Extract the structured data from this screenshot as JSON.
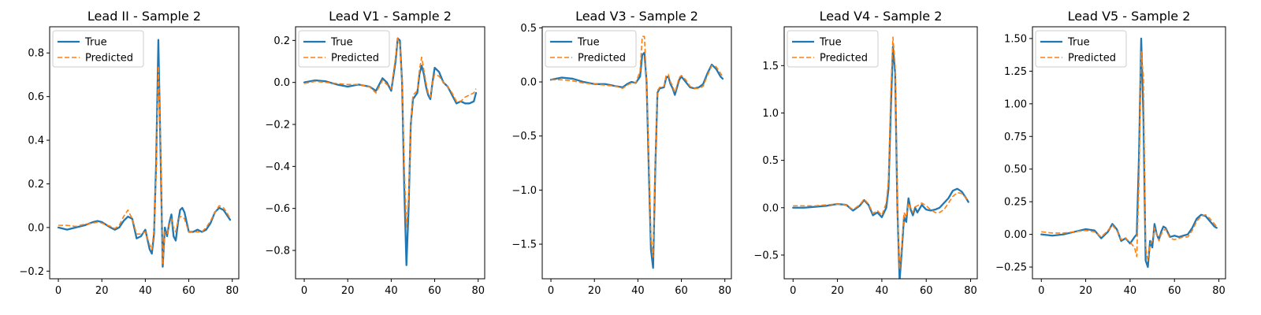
{
  "colors": {
    "true": "#1f77b4",
    "predicted": "#ff7f0e"
  },
  "chart_data": [
    {
      "type": "line",
      "title": "Lead II - Sample 2",
      "xlim": [
        -4,
        83
      ],
      "ylim": [
        -0.235,
        0.92
      ],
      "xticks": [
        0,
        20,
        40,
        60,
        80
      ],
      "yticks": [
        -0.2,
        0.0,
        0.2,
        0.4,
        0.6,
        0.8
      ],
      "ytick_labels": [
        "−0.2",
        "0.0",
        "0.2",
        "0.4",
        "0.6",
        "0.8"
      ],
      "legend": {
        "position": "upper-left",
        "entries": [
          "True",
          "Predicted"
        ]
      },
      "series": [
        {
          "name": "True",
          "style": "solid",
          "x": [
            0,
            4,
            8,
            12,
            16,
            18,
            20,
            24,
            26,
            28,
            30,
            32,
            34,
            36,
            38,
            40,
            42,
            43,
            44,
            45,
            46,
            47,
            48,
            49,
            50,
            51,
            52,
            53,
            54,
            55,
            56,
            57,
            58,
            60,
            62,
            64,
            66,
            68,
            70,
            72,
            74,
            76,
            78,
            79
          ],
          "y": [
            0.0,
            -0.01,
            0.0,
            0.01,
            0.025,
            0.03,
            0.025,
            0.0,
            -0.01,
            0.0,
            0.03,
            0.05,
            0.04,
            -0.05,
            -0.04,
            -0.01,
            -0.1,
            -0.12,
            -0.03,
            0.3,
            0.86,
            0.35,
            -0.18,
            0.0,
            -0.04,
            0.02,
            0.06,
            -0.04,
            -0.06,
            0.02,
            0.08,
            0.09,
            0.07,
            -0.02,
            -0.02,
            -0.01,
            -0.02,
            -0.01,
            0.02,
            0.07,
            0.09,
            0.08,
            0.05,
            0.035
          ]
        },
        {
          "name": "Predicted",
          "style": "dashed",
          "x": [
            0,
            4,
            8,
            12,
            16,
            18,
            20,
            24,
            26,
            28,
            30,
            32,
            34,
            36,
            38,
            40,
            42,
            43,
            44,
            45,
            46,
            47,
            48,
            49,
            50,
            51,
            52,
            53,
            54,
            55,
            56,
            57,
            58,
            60,
            62,
            64,
            66,
            68,
            70,
            72,
            74,
            76,
            78,
            79
          ],
          "y": [
            0.01,
            0.01,
            0.005,
            0.015,
            0.02,
            0.025,
            0.02,
            0.005,
            -0.005,
            0.01,
            0.05,
            0.08,
            0.04,
            -0.03,
            -0.03,
            -0.02,
            -0.08,
            -0.1,
            -0.01,
            0.25,
            0.74,
            0.4,
            -0.17,
            -0.02,
            -0.03,
            0.01,
            0.04,
            0.0,
            -0.02,
            0.03,
            0.05,
            0.05,
            0.04,
            -0.02,
            -0.02,
            -0.02,
            -0.02,
            0.0,
            0.03,
            0.07,
            0.1,
            0.09,
            0.06,
            0.04
          ]
        }
      ]
    },
    {
      "type": "line",
      "title": "Lead V1 - Sample 2",
      "xlim": [
        -4,
        83
      ],
      "ylim": [
        -0.935,
        0.265
      ],
      "xticks": [
        0,
        20,
        40,
        60,
        80
      ],
      "yticks": [
        -0.8,
        -0.6,
        -0.4,
        -0.2,
        0.0,
        0.2
      ],
      "ytick_labels": [
        "−0.8",
        "−0.6",
        "−0.4",
        "−0.2",
        "0.0",
        "0.2"
      ],
      "legend": {
        "position": "upper-left",
        "entries": [
          "True",
          "Predicted"
        ]
      },
      "series": [
        {
          "name": "True",
          "style": "solid",
          "x": [
            0,
            5,
            10,
            15,
            20,
            25,
            30,
            33,
            36,
            38,
            40,
            42,
            43,
            44,
            45,
            46,
            47,
            48,
            49,
            50,
            52,
            53,
            54,
            55,
            56,
            57,
            58,
            59,
            60,
            62,
            64,
            66,
            68,
            70,
            72,
            74,
            76,
            78,
            79
          ],
          "y": [
            0.0,
            0.01,
            0.005,
            -0.01,
            -0.02,
            -0.01,
            -0.02,
            -0.04,
            0.02,
            0.0,
            -0.04,
            0.1,
            0.21,
            0.2,
            0.0,
            -0.5,
            -0.87,
            -0.6,
            -0.2,
            -0.08,
            -0.05,
            0.04,
            0.08,
            0.04,
            -0.02,
            -0.06,
            -0.08,
            0.0,
            0.07,
            0.05,
            0.0,
            -0.02,
            -0.06,
            -0.1,
            -0.09,
            -0.1,
            -0.1,
            -0.09,
            -0.05
          ]
        },
        {
          "name": "Predicted",
          "style": "dashed",
          "x": [
            0,
            5,
            10,
            15,
            20,
            25,
            30,
            33,
            36,
            38,
            40,
            42,
            43,
            44,
            45,
            46,
            47,
            48,
            49,
            50,
            52,
            53,
            54,
            55,
            56,
            57,
            58,
            59,
            60,
            62,
            64,
            66,
            68,
            70,
            72,
            74,
            76,
            78,
            79
          ],
          "y": [
            -0.005,
            0.005,
            0.0,
            -0.005,
            -0.01,
            -0.01,
            -0.02,
            -0.05,
            0.01,
            -0.01,
            -0.03,
            0.12,
            0.21,
            0.18,
            0.0,
            -0.4,
            -0.69,
            -0.55,
            -0.2,
            -0.06,
            -0.04,
            0.06,
            0.12,
            0.06,
            0.0,
            -0.05,
            -0.07,
            0.0,
            0.04,
            0.03,
            0.0,
            -0.02,
            -0.05,
            -0.09,
            -0.09,
            -0.07,
            -0.06,
            -0.05,
            -0.03
          ]
        }
      ]
    },
    {
      "type": "line",
      "title": "Lead V3 - Sample 2",
      "xlim": [
        -4,
        83
      ],
      "ylim": [
        -1.82,
        0.51
      ],
      "xticks": [
        0,
        20,
        40,
        60,
        80
      ],
      "yticks": [
        -1.5,
        -1.0,
        -0.5,
        0.0,
        0.5
      ],
      "ytick_labels": [
        "−1.5",
        "−1.0",
        "−0.5",
        "0.0",
        "0.5"
      ],
      "legend": {
        "position": "upper-left",
        "entries": [
          "True",
          "Predicted"
        ]
      },
      "series": [
        {
          "name": "True",
          "style": "solid",
          "x": [
            0,
            5,
            10,
            15,
            20,
            25,
            30,
            33,
            35,
            37,
            39,
            41,
            42,
            43,
            44,
            45,
            46,
            47,
            48,
            49,
            50,
            52,
            53,
            54,
            55,
            56,
            57,
            58,
            59,
            60,
            62,
            64,
            66,
            68,
            70,
            72,
            74,
            76,
            78,
            79
          ],
          "y": [
            0.02,
            0.04,
            0.03,
            0.0,
            -0.02,
            -0.02,
            -0.04,
            -0.05,
            -0.02,
            0.0,
            -0.01,
            0.05,
            0.25,
            0.27,
            0.0,
            -0.8,
            -1.55,
            -1.72,
            -0.8,
            -0.1,
            -0.06,
            -0.05,
            0.04,
            0.05,
            -0.02,
            -0.06,
            -0.12,
            -0.05,
            0.02,
            0.05,
            0.0,
            -0.05,
            -0.06,
            -0.05,
            -0.02,
            0.08,
            0.16,
            0.12,
            0.05,
            0.03
          ]
        },
        {
          "name": "Predicted",
          "style": "dashed",
          "x": [
            0,
            5,
            10,
            15,
            20,
            25,
            30,
            33,
            35,
            37,
            39,
            41,
            42,
            43,
            44,
            45,
            46,
            47,
            48,
            49,
            50,
            52,
            53,
            54,
            55,
            56,
            57,
            58,
            59,
            60,
            62,
            64,
            66,
            68,
            70,
            72,
            74,
            76,
            78,
            79
          ],
          "y": [
            0.02,
            0.02,
            0.01,
            -0.01,
            -0.02,
            -0.03,
            -0.04,
            -0.06,
            -0.03,
            -0.01,
            -0.01,
            0.1,
            0.42,
            0.42,
            0.0,
            -0.7,
            -1.45,
            -1.62,
            -0.75,
            -0.08,
            -0.05,
            -0.04,
            0.06,
            0.07,
            0.0,
            -0.04,
            -0.1,
            -0.03,
            0.04,
            0.06,
            0.02,
            -0.04,
            -0.06,
            -0.06,
            -0.04,
            0.06,
            0.15,
            0.14,
            0.08,
            0.05
          ]
        }
      ]
    },
    {
      "type": "line",
      "title": "Lead V4 - Sample 2",
      "xlim": [
        -4,
        83
      ],
      "ylim": [
        -0.75,
        1.91
      ],
      "xticks": [
        0,
        20,
        40,
        60,
        80
      ],
      "yticks": [
        -0.5,
        0.0,
        0.5,
        1.0,
        1.5
      ],
      "ytick_labels": [
        "−0.5",
        "0.0",
        "0.5",
        "1.0",
        "1.5"
      ],
      "legend": {
        "position": "upper-left",
        "entries": [
          "True",
          "Predicted"
        ]
      },
      "series": [
        {
          "name": "True",
          "style": "solid",
          "x": [
            0,
            5,
            10,
            15,
            20,
            24,
            27,
            30,
            32,
            34,
            36,
            38,
            40,
            42,
            43,
            44,
            45,
            46,
            47,
            48,
            49,
            50,
            51,
            52,
            53,
            54,
            55,
            56,
            58,
            60,
            62,
            64,
            66,
            68,
            70,
            72,
            74,
            76,
            78,
            79
          ],
          "y": [
            0.0,
            0.0,
            0.01,
            0.02,
            0.04,
            0.03,
            -0.03,
            0.02,
            0.08,
            0.03,
            -0.08,
            -0.05,
            -0.1,
            0.0,
            0.2,
            1.0,
            1.7,
            1.42,
            0.0,
            -0.77,
            -0.45,
            -0.1,
            -0.15,
            0.1,
            -0.02,
            -0.08,
            0.0,
            -0.05,
            0.03,
            -0.02,
            -0.03,
            -0.02,
            0.0,
            0.05,
            0.1,
            0.18,
            0.2,
            0.17,
            0.1,
            0.06
          ]
        },
        {
          "name": "Predicted",
          "style": "dashed",
          "x": [
            0,
            5,
            10,
            15,
            20,
            24,
            27,
            30,
            32,
            34,
            36,
            38,
            40,
            42,
            43,
            44,
            45,
            46,
            47,
            48,
            49,
            50,
            51,
            52,
            53,
            54,
            55,
            56,
            58,
            60,
            62,
            64,
            66,
            68,
            70,
            72,
            74,
            76,
            78,
            79
          ],
          "y": [
            0.02,
            0.02,
            0.02,
            0.03,
            0.04,
            0.03,
            -0.02,
            0.03,
            0.09,
            0.04,
            -0.06,
            -0.03,
            -0.08,
            0.05,
            0.3,
            1.2,
            1.8,
            1.5,
            0.0,
            -0.65,
            -0.4,
            -0.05,
            -0.1,
            0.05,
            0.0,
            -0.05,
            0.01,
            0.02,
            0.05,
            0.02,
            -0.02,
            -0.05,
            -0.05,
            -0.02,
            0.05,
            0.12,
            0.16,
            0.15,
            0.1,
            0.07
          ]
        }
      ]
    },
    {
      "type": "line",
      "title": "Lead V5 - Sample 2",
      "xlim": [
        -4,
        83
      ],
      "ylim": [
        -0.34,
        1.59
      ],
      "xticks": [
        0,
        20,
        40,
        60,
        80
      ],
      "yticks": [
        -0.25,
        0.0,
        0.25,
        0.5,
        0.75,
        1.0,
        1.25,
        1.5
      ],
      "ytick_labels": [
        "−0.25",
        "0.00",
        "0.25",
        "0.50",
        "0.75",
        "1.00",
        "1.25",
        "1.50"
      ],
      "legend": {
        "position": "upper-left",
        "entries": [
          "True",
          "Predicted"
        ]
      },
      "series": [
        {
          "name": "True",
          "style": "solid",
          "x": [
            0,
            5,
            10,
            15,
            20,
            24,
            27,
            30,
            32,
            34,
            36,
            38,
            40,
            42,
            43,
            44,
            45,
            46,
            47,
            48,
            49,
            50,
            51,
            52,
            53,
            54,
            55,
            56,
            58,
            60,
            62,
            64,
            66,
            68,
            70,
            72,
            74,
            76,
            78,
            79
          ],
          "y": [
            0.0,
            -0.01,
            0.0,
            0.02,
            0.04,
            0.03,
            -0.03,
            0.02,
            0.08,
            0.04,
            -0.05,
            -0.03,
            -0.07,
            -0.02,
            0.0,
            0.6,
            1.5,
            0.9,
            -0.2,
            -0.25,
            -0.05,
            -0.1,
            0.08,
            0.0,
            -0.04,
            0.02,
            0.06,
            0.05,
            -0.02,
            -0.01,
            -0.02,
            -0.01,
            0.0,
            0.05,
            0.12,
            0.15,
            0.14,
            0.1,
            0.06,
            0.05
          ]
        },
        {
          "name": "Predicted",
          "style": "dashed",
          "x": [
            0,
            5,
            10,
            15,
            20,
            24,
            27,
            30,
            32,
            34,
            36,
            38,
            40,
            42,
            43,
            44,
            45,
            46,
            47,
            48,
            49,
            50,
            51,
            52,
            53,
            54,
            55,
            56,
            58,
            60,
            62,
            64,
            66,
            68,
            70,
            72,
            74,
            76,
            78,
            79
          ],
          "y": [
            0.02,
            0.01,
            0.01,
            0.02,
            0.03,
            0.02,
            -0.02,
            0.03,
            0.07,
            0.03,
            -0.04,
            -0.03,
            -0.06,
            -0.1,
            -0.17,
            0.4,
            1.4,
            1.2,
            -0.1,
            -0.2,
            -0.08,
            -0.05,
            0.05,
            0.0,
            -0.05,
            0.0,
            0.03,
            0.04,
            -0.03,
            -0.04,
            -0.03,
            -0.02,
            -0.02,
            0.03,
            0.1,
            0.14,
            0.15,
            0.12,
            0.08,
            0.06
          ]
        }
      ]
    }
  ]
}
